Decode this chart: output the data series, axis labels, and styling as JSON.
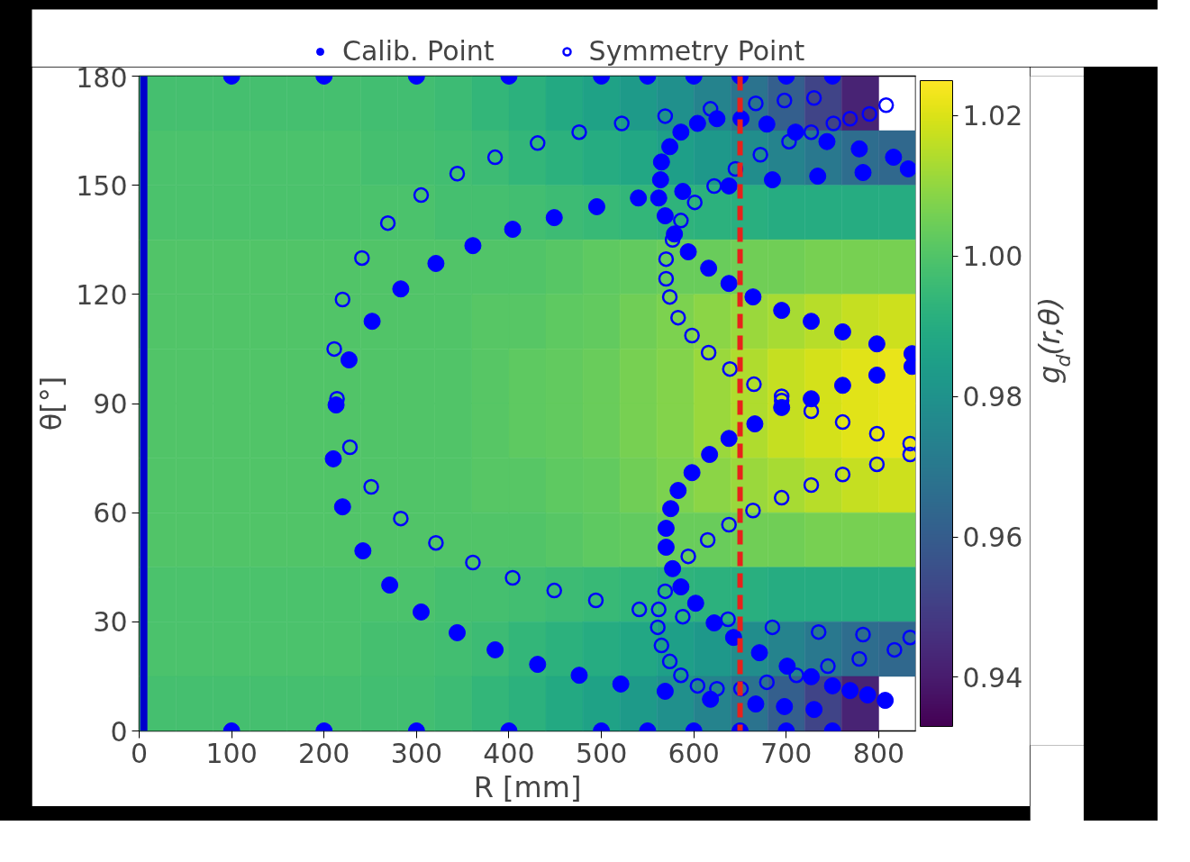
{
  "chart_data": {
    "type": "heatmap",
    "xlabel": "R [mm]",
    "ylabel": "θ[°]",
    "clabel": "g$_{d}$(r,θ)",
    "x": [
      20,
      60,
      100,
      140,
      180,
      220,
      260,
      300,
      340,
      380,
      420,
      460,
      500,
      540,
      580,
      620,
      660,
      700,
      740,
      780,
      820
    ],
    "y": [
      172.5,
      157.5,
      142.5,
      127.5,
      112.5,
      97.5,
      82.5,
      67.5,
      52.5,
      37.5,
      22.5,
      7.5
    ],
    "cells": [
      [
        0.998,
        0.998,
        0.998,
        0.998,
        0.998,
        0.998,
        0.997,
        0.997,
        0.996,
        0.994,
        0.992,
        0.989,
        0.986,
        0.983,
        0.979,
        0.974,
        0.968,
        0.961,
        0.952,
        0.942,
        null
      ],
      [
        0.999,
        0.999,
        0.999,
        0.999,
        0.999,
        0.999,
        0.998,
        0.998,
        0.997,
        0.996,
        0.994,
        0.992,
        0.99,
        0.988,
        0.985,
        0.982,
        0.978,
        0.974,
        0.97,
        0.966,
        0.964
      ],
      [
        0.999,
        0.999,
        0.999,
        0.999,
        0.999,
        0.999,
        0.999,
        0.999,
        0.998,
        0.998,
        0.997,
        0.996,
        0.995,
        0.994,
        0.993,
        0.992,
        0.991,
        0.99,
        0.99,
        0.99,
        0.99
      ],
      [
        1.0,
        1.0,
        1.0,
        1.0,
        1.0,
        1.0,
        1.0,
        1.0,
        1.0,
        1.0,
        1.0,
        1.001,
        1.002,
        1.003,
        1.004,
        1.004,
        1.005,
        1.005,
        1.006,
        1.006,
        1.006
      ],
      [
        1.0,
        1.0,
        1.0,
        1.0,
        1.0,
        1.0,
        1.0,
        1.0,
        1.0,
        1.001,
        1.001,
        1.002,
        1.003,
        1.005,
        1.007,
        1.009,
        1.011,
        1.013,
        1.015,
        1.017,
        1.018
      ],
      [
        1.0,
        1.0,
        1.0,
        1.0,
        1.0,
        1.0,
        1.0,
        1.0,
        1.0,
        1.001,
        1.002,
        1.003,
        1.004,
        1.006,
        1.008,
        1.011,
        1.014,
        1.017,
        1.019,
        1.021,
        1.022
      ],
      [
        1.0,
        1.0,
        1.0,
        1.0,
        1.0,
        1.0,
        1.0,
        1.0,
        1.0,
        1.001,
        1.002,
        1.003,
        1.004,
        1.006,
        1.008,
        1.011,
        1.014,
        1.017,
        1.019,
        1.021,
        1.022
      ],
      [
        1.0,
        1.0,
        1.0,
        1.0,
        1.0,
        1.0,
        1.0,
        1.0,
        1.0,
        1.001,
        1.001,
        1.002,
        1.003,
        1.005,
        1.007,
        1.009,
        1.011,
        1.013,
        1.015,
        1.017,
        1.018
      ],
      [
        1.0,
        1.0,
        1.0,
        1.0,
        1.0,
        1.0,
        1.0,
        1.0,
        1.0,
        1.0,
        1.0,
        1.001,
        1.002,
        1.003,
        1.004,
        1.004,
        1.005,
        1.005,
        1.006,
        1.006,
        1.006
      ],
      [
        0.999,
        0.999,
        0.999,
        0.999,
        0.999,
        0.999,
        0.999,
        0.999,
        0.998,
        0.998,
        0.997,
        0.996,
        0.995,
        0.994,
        0.993,
        0.992,
        0.991,
        0.99,
        0.99,
        0.99,
        0.99
      ],
      [
        0.999,
        0.999,
        0.999,
        0.999,
        0.999,
        0.999,
        0.998,
        0.998,
        0.997,
        0.996,
        0.994,
        0.992,
        0.99,
        0.988,
        0.985,
        0.982,
        0.978,
        0.974,
        0.97,
        0.966,
        0.964
      ],
      [
        0.998,
        0.998,
        0.998,
        0.998,
        0.998,
        0.998,
        0.997,
        0.997,
        0.996,
        0.994,
        0.992,
        0.989,
        0.986,
        0.983,
        0.979,
        0.974,
        0.968,
        0.961,
        0.952,
        0.942,
        null
      ]
    ],
    "clim": [
      0.933,
      1.025
    ],
    "cticks": [
      {
        "value": 0.94,
        "label": "0.94"
      },
      {
        "value": 0.96,
        "label": "0.96"
      },
      {
        "value": 0.98,
        "label": "0.98"
      },
      {
        "value": 1.0,
        "label": "1.00"
      },
      {
        "value": 1.02,
        "label": "1.02"
      }
    ],
    "xlim": [
      0,
      840
    ],
    "xticks": [
      0,
      100,
      200,
      300,
      400,
      500,
      600,
      700,
      800
    ],
    "ylim": [
      0,
      180
    ],
    "yticks": [
      0,
      30,
      60,
      90,
      120,
      150,
      180
    ],
    "grid": false,
    "legend": "top",
    "ref_lines": [
      {
        "axis": "x",
        "value": 650,
        "color": "#e8211b",
        "line_style": "dashed"
      },
      {
        "axis": "x",
        "value": 5,
        "color": "#0000cc",
        "line_style": "solid"
      }
    ],
    "series": [
      {
        "name": "Calib. Point",
        "type": "scatter",
        "marker": "circle",
        "color": "#0000ff",
        "x": [
          100,
          200,
          300,
          400,
          500,
          550,
          600,
          650,
          700,
          750,
          100,
          200,
          300,
          400,
          500,
          550,
          600,
          650,
          700,
          750,
          213,
          210,
          220,
          242,
          271,
          305,
          344,
          385,
          431,
          476,
          521,
          569,
          618,
          667,
          698,
          730,
          227,
          252,
          283,
          321,
          361,
          404,
          449,
          495,
          540,
          562,
          564,
          565,
          574,
          586,
          604,
          625,
          651,
          679,
          710,
          744,
          779,
          816,
          832,
          685,
          734,
          783,
          588,
          638,
          569,
          579,
          594,
          616,
          638,
          664,
          695,
          727,
          761,
          798,
          836,
          836,
          695,
          727,
          761,
          798,
          666,
          638,
          617,
          598,
          583,
          575,
          570,
          570,
          577,
          586,
          602,
          622,
          643,
          671,
          701,
          727,
          750,
          769,
          788,
          807
        ],
        "values": [
          180,
          180,
          180,
          180,
          180,
          180,
          180,
          180,
          180,
          180,
          0,
          0,
          0,
          0,
          0,
          0,
          0,
          0,
          0,
          0,
          89.6,
          74.8,
          61.6,
          49.5,
          40.1,
          32.7,
          27,
          22.3,
          18.3,
          15.3,
          12.9,
          10.9,
          8.7,
          7.4,
          6.7,
          5.9,
          102,
          112.6,
          121.5,
          128.5,
          133.4,
          137.9,
          141.1,
          144.1,
          146.5,
          146.5,
          151.5,
          156.4,
          160.6,
          164.6,
          167,
          168.3,
          168.3,
          166.8,
          164.6,
          162,
          160,
          157.7,
          154.5,
          151.5,
          152.5,
          153.5,
          148.3,
          149.8,
          141.6,
          136.6,
          131.7,
          127.2,
          123,
          119.3,
          115.6,
          112.6,
          109.7,
          106.4,
          103.7,
          100.2,
          88.9,
          91.3,
          95,
          97.8,
          84.4,
          80.4,
          76,
          71,
          66.1,
          61.1,
          55.7,
          50.5,
          44.6,
          39.6,
          35.1,
          29.7,
          25.7,
          21.5,
          17.8,
          14.9,
          12.4,
          11.1,
          9.9,
          8.4
        ]
      },
      {
        "name": "Symmetry Point",
        "type": "scatter",
        "marker": "circle_open",
        "color": "#0000ff",
        "x": [
          385,
          344,
          305,
          269,
          241,
          220,
          211,
          214,
          228,
          251,
          283,
          321,
          361,
          404,
          449,
          494,
          541,
          562,
          561,
          565,
          574,
          586,
          604,
          625,
          651,
          679,
          711,
          745,
          779,
          817,
          834,
          569,
          588,
          637,
          685,
          735,
          783,
          594,
          615,
          638,
          664,
          695,
          727,
          761,
          798,
          834,
          761,
          798,
          834,
          727,
          695,
          431,
          476,
          522,
          569,
          618,
          667,
          698,
          730,
          808,
          790,
          769,
          751,
          727,
          703,
          672,
          645,
          622,
          601,
          586,
          577,
          570,
          570,
          574,
          583,
          598,
          616,
          639,
          665,
          695
        ],
        "values": [
          157.7,
          153.2,
          147.3,
          139.6,
          130,
          118.6,
          105,
          91.3,
          78,
          67.1,
          58.4,
          51.7,
          46.3,
          42.1,
          38.6,
          35.9,
          33.4,
          33.4,
          28.5,
          23.5,
          19.1,
          15.3,
          12.4,
          11.6,
          11.6,
          13.4,
          15.3,
          17.8,
          19.8,
          22.3,
          25.7,
          38.4,
          31.4,
          30.7,
          28.5,
          27.2,
          26.5,
          48,
          52.5,
          56.7,
          60.6,
          64.1,
          67.6,
          70.5,
          73.3,
          76,
          84.9,
          81.7,
          79,
          87.9,
          90.8,
          161.6,
          164.6,
          167,
          169,
          171,
          172.5,
          173.3,
          174,
          172,
          169.6,
          168.3,
          167,
          164.6,
          162,
          158.4,
          154.5,
          149.8,
          145.3,
          140.3,
          135,
          129.7,
          124.3,
          119.3,
          113.6,
          108.7,
          104,
          99.5,
          95.3,
          92
        ]
      }
    ]
  }
}
